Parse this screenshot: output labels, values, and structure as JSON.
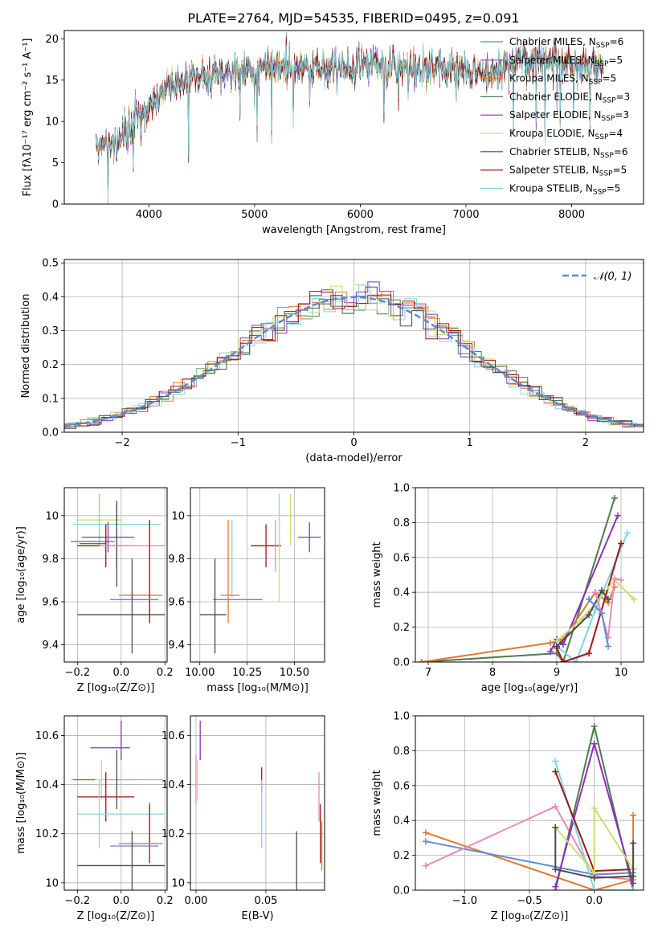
{
  "figure_title": "PLATE=2764, MJD=54535, FIBERID=0495, z=0.091",
  "colors": {
    "c0": "#6a9a6a",
    "c1": "#9a3fbf",
    "c2": "#e07a2f",
    "c3": "#4d7c4d",
    "c4": "#8e2fbf",
    "c5": "#c8e06a",
    "c6": "#4a4a4a",
    "c7": "#a01515",
    "c8": "#7fd6e0",
    "c9": "#e88ab8",
    "c10": "#5b8bd6",
    "normal": "#5b8bd6"
  },
  "chart_data": [
    {
      "id": "spectrum",
      "type": "line",
      "title": "PLATE=2764, MJD=54535, FIBERID=0495, z=0.091",
      "xlabel": "wavelength [Angstrom, rest frame]",
      "ylabel": "Flux [fλ10⁻¹⁷ erg cm⁻² s⁻¹ A⁻¹]",
      "xlim": [
        3200,
        8680
      ],
      "ylim": [
        0,
        21
      ],
      "xticks": [
        4000,
        5000,
        6000,
        7000,
        8000
      ],
      "yticks": [
        0,
        5,
        10,
        15,
        20
      ],
      "grid": false,
      "legend_position": "right",
      "x_range_data": [
        3500,
        8300
      ],
      "continuum": {
        "x": [
          3500,
          3600,
          3700,
          3800,
          3900,
          4000,
          4100,
          4200,
          4300,
          4400,
          4500,
          4700,
          5000,
          5500,
          6000,
          6500,
          7000,
          7300,
          7500,
          8000,
          8300
        ],
        "y": [
          6.5,
          7.2,
          7.5,
          8.5,
          10.5,
          12.0,
          13.5,
          14.2,
          14.5,
          15.0,
          15.3,
          15.8,
          16.3,
          16.5,
          16.8,
          16.6,
          16.2,
          15.8,
          17.8,
          17.0,
          16.6
        ]
      },
      "series": [
        {
          "name": "Chabrier MILES, N_SSP=6",
          "legend_label": "Chabrier MILES, N",
          "legend_sub": "SSP",
          "legend_value": "=6",
          "color": "#6a9a6a"
        },
        {
          "name": "Salpeter MILES, N_SSP=5",
          "legend_label": "Salpeter MILES, N",
          "legend_sub": "SSP",
          "legend_value": "=5",
          "color": "#9a3fbf"
        },
        {
          "name": "Kroupa MILES, N_SSP=5",
          "legend_label": "Kroupa MILES, N",
          "legend_sub": "SSP",
          "legend_value": "=5",
          "color": "#e07a2f"
        },
        {
          "name": "Chabrier ELODIE, N_SSP=3",
          "legend_label": "Chabrier ELODIE, N",
          "legend_sub": "SSP",
          "legend_value": "=3",
          "color": "#4d7c4d"
        },
        {
          "name": "Salpeter ELODIE, N_SSP=3",
          "legend_label": "Salpeter ELODIE, N",
          "legend_sub": "SSP",
          "legend_value": "=3",
          "color": "#8e2fbf"
        },
        {
          "name": "Kroupa ELODIE, N_SSP=4",
          "legend_label": "Kroupa ELODIE, N",
          "legend_sub": "SSP",
          "legend_value": "=4",
          "color": "#c8e06a"
        },
        {
          "name": "Chabrier STELIB, N_SSP=6",
          "legend_label": "Chabrier STELIB, N",
          "legend_sub": "SSP",
          "legend_value": "=6",
          "color": "#4a4a4a"
        },
        {
          "name": "Salpeter STELIB, N_SSP=5",
          "legend_label": "Salpeter STELIB, N",
          "legend_sub": "SSP",
          "legend_value": "=5",
          "color": "#a01515"
        },
        {
          "name": "Kroupa STELIB, N_SSP=5",
          "legend_label": "Kroupa STELIB, N",
          "legend_sub": "SSP",
          "legend_value": "=5",
          "color": "#7fd6e0"
        }
      ]
    },
    {
      "id": "residuals",
      "type": "histogram",
      "xlabel": "(data-model)/error",
      "ylabel": "Normed distribution",
      "xlim": [
        -2.5,
        2.5
      ],
      "ylim": [
        0,
        0.51
      ],
      "xticks": [
        -2,
        -1,
        0,
        1,
        2
      ],
      "yticks": [
        0.0,
        0.1,
        0.2,
        0.3,
        0.4,
        0.5
      ],
      "grid": true,
      "bin_width": 0.1,
      "legend": {
        "label": "𝒩(0, 1)",
        "position": "top-right"
      },
      "series_colors": [
        "#4d7c4d",
        "#8e2fbf",
        "#e07a2f",
        "#c8e06a",
        "#a01515",
        "#7fd6e0",
        "#4a4a4a"
      ]
    },
    {
      "id": "age_vs_Z",
      "type": "errorbar",
      "xlabel": "Z [log₁₀(Z/Z⊙)]",
      "ylabel": "age  [log₁₀(age/yr)]",
      "xlim": [
        -0.26,
        0.21
      ],
      "ylim": [
        9.32,
        10.13
      ],
      "xticks": [
        -0.2,
        0.0,
        0.2
      ],
      "yticks": [
        9.4,
        9.6,
        9.8,
        10.0
      ],
      "grid": true,
      "points": [
        {
          "x": -0.1,
          "y": 9.98,
          "xerr": 0.1,
          "yerr": 0.12,
          "color": "#c8e06a"
        },
        {
          "x": -0.1,
          "y": 9.98,
          "xerr": 0.0,
          "yerr": 0.12,
          "color": "#7fd6e0"
        },
        {
          "x": -0.02,
          "y": 9.96,
          "xerr": 0.2,
          "yerr": 0.0,
          "color": "#7fd6e0"
        },
        {
          "x": -0.13,
          "y": 9.88,
          "xerr": 0.1,
          "yerr": 0.0,
          "color": "#4d7c4d"
        },
        {
          "x": -0.06,
          "y": 9.9,
          "xerr": 0.12,
          "yerr": 0.07,
          "color": "#8e2fbf"
        },
        {
          "x": -0.02,
          "y": 9.9,
          "xerr": 0.0,
          "yerr": 0.15,
          "color": "#8e2fbf"
        },
        {
          "x": -0.13,
          "y": 9.87,
          "xerr": 0.06,
          "yerr": 0.0,
          "color": "#4d7c4d"
        },
        {
          "x": -0.02,
          "y": 9.87,
          "xerr": 0.0,
          "yerr": 0.2,
          "color": "#4a4a4a"
        },
        {
          "x": -0.07,
          "y": 9.86,
          "xerr": 0.13,
          "yerr": 0.1,
          "color": "#a01515"
        },
        {
          "x": 0.05,
          "y": 9.86,
          "xerr": 0.15,
          "yerr": 0.0,
          "color": "#e88ab8"
        },
        {
          "x": 0.13,
          "y": 9.74,
          "xerr": 0.0,
          "yerr": 0.24,
          "color": "#e88ab8"
        },
        {
          "x": 0.09,
          "y": 9.63,
          "xerr": 0.1,
          "yerr": 0.0,
          "color": "#e07a2f"
        },
        {
          "x": 0.13,
          "y": 9.74,
          "xerr": 0.0,
          "yerr": 0.24,
          "color": "#a01515"
        },
        {
          "x": 0.06,
          "y": 9.61,
          "xerr": 0.11,
          "yerr": 0.0,
          "color": "#5b8bd6"
        },
        {
          "x": 0.0,
          "y": 9.54,
          "xerr": 0.2,
          "yerr": 0.0,
          "color": "#4a4a4a"
        },
        {
          "x": 0.05,
          "y": 9.58,
          "xerr": 0.0,
          "yerr": 0.22,
          "color": "#4a4a4a"
        }
      ]
    },
    {
      "id": "age_vs_mass",
      "type": "errorbar",
      "xlabel": "mass [log₁₀(M/M⊙)]",
      "ylabel": "",
      "xlim": [
        9.95,
        10.66
      ],
      "ylim": [
        9.32,
        10.13
      ],
      "xticks": [
        10.0,
        10.25,
        10.5
      ],
      "yticks": [
        9.4,
        9.6,
        9.8,
        10.0
      ],
      "grid": true,
      "points": [
        {
          "x": 10.42,
          "y": 9.98,
          "xerr": 0.0,
          "yerr": 0.12,
          "color": "#7fd6e0"
        },
        {
          "x": 10.48,
          "y": 9.98,
          "xerr": 0.0,
          "yerr": 0.12,
          "color": "#c8e06a"
        },
        {
          "x": 10.58,
          "y": 9.9,
          "xerr": 0.06,
          "yerr": 0.07,
          "color": "#8e2fbf"
        },
        {
          "x": 10.17,
          "y": 9.8,
          "xerr": 0.0,
          "yerr": 0.18,
          "color": "#7fd6e0"
        },
        {
          "x": 10.35,
          "y": 9.86,
          "xerr": 0.08,
          "yerr": 0.1,
          "color": "#a01515"
        },
        {
          "x": 10.4,
          "y": 9.86,
          "xerr": 0.0,
          "yerr": 0.12,
          "color": "#e88ab8"
        },
        {
          "x": 10.42,
          "y": 9.8,
          "xerr": 0.0,
          "yerr": 0.2,
          "color": "#c8e06a"
        },
        {
          "x": 10.16,
          "y": 9.63,
          "xerr": 0.05,
          "yerr": 0.0,
          "color": "#e07a2f"
        },
        {
          "x": 10.15,
          "y": 9.74,
          "xerr": 0.0,
          "yerr": 0.24,
          "color": "#e07a2f"
        },
        {
          "x": 10.2,
          "y": 9.61,
          "xerr": 0.13,
          "yerr": 0.0,
          "color": "#5b8bd6"
        },
        {
          "x": 10.07,
          "y": 9.54,
          "xerr": 0.07,
          "yerr": 0.0,
          "color": "#4a4a4a"
        },
        {
          "x": 10.08,
          "y": 9.58,
          "xerr": 0.0,
          "yerr": 0.22,
          "color": "#4a4a4a"
        }
      ]
    },
    {
      "id": "massweight_vs_age",
      "type": "line",
      "xlabel": "age  [log₁₀(age/yr)]",
      "ylabel": "mass weight",
      "xlim": [
        6.8,
        10.35
      ],
      "ylim": [
        0,
        1.0
      ],
      "xticks": [
        7,
        8,
        9,
        10
      ],
      "yticks": [
        0.0,
        0.2,
        0.4,
        0.6,
        0.8,
        1.0
      ],
      "grid": true,
      "series": [
        {
          "color": "#4d7c4d",
          "x": [
            6.9,
            9.0,
            9.1,
            9.9
          ],
          "y": [
            0.0,
            0.05,
            0.0,
            0.94
          ]
        },
        {
          "color": "#e07a2f",
          "x": [
            6.9,
            8.9,
            9.1,
            9.6,
            9.8,
            9.9
          ],
          "y": [
            0.0,
            0.11,
            0.13,
            0.4,
            0.34,
            0.43
          ]
        },
        {
          "color": "#8e2fbf",
          "x": [
            8.9,
            9.0,
            9.1,
            9.95
          ],
          "y": [
            0.06,
            0.13,
            0.1,
            0.84
          ]
        },
        {
          "color": "#7fd6e0",
          "x": [
            9.0,
            9.3,
            9.6,
            10.1
          ],
          "y": [
            0.09,
            0.0,
            0.3,
            0.74
          ]
        },
        {
          "color": "#a01515",
          "x": [
            9.0,
            9.1,
            9.5,
            10.0
          ],
          "y": [
            0.08,
            0.0,
            0.05,
            0.68
          ]
        },
        {
          "color": "#c8e06a",
          "x": [
            9.0,
            9.4,
            9.9,
            10.2
          ],
          "y": [
            0.12,
            0.25,
            0.47,
            0.36
          ]
        },
        {
          "color": "#4a4a4a",
          "x": [
            9.0,
            9.5,
            9.7,
            9.8
          ],
          "y": [
            0.09,
            0.27,
            0.41,
            0.36
          ]
        },
        {
          "color": "#e88ab8",
          "x": [
            9.6,
            9.8,
            9.9,
            10.0
          ],
          "y": [
            0.4,
            0.14,
            0.48,
            0.47
          ]
        },
        {
          "color": "#5b8bd6",
          "x": [
            9.5,
            9.7,
            9.8
          ],
          "y": [
            0.36,
            0.28,
            0.09
          ]
        }
      ]
    },
    {
      "id": "mass_vs_Z",
      "type": "errorbar",
      "xlabel": "Z [log₁₀(Z/Z⊙)]",
      "ylabel": "mass [log₁₀(M/M⊙)]",
      "xlim": [
        -0.26,
        0.21
      ],
      "ylim": [
        9.97,
        10.68
      ],
      "xticks": [
        -0.2,
        0.0,
        0.2
      ],
      "yticks": [
        10.0,
        10.2,
        10.4,
        10.6
      ],
      "grid": true,
      "points": [
        {
          "x": -0.05,
          "y": 10.55,
          "xerr": 0.09,
          "yerr": 0.0,
          "color": "#8e2fbf"
        },
        {
          "x": 0.0,
          "y": 10.58,
          "xerr": 0.0,
          "yerr": 0.08,
          "color": "#8e2fbf"
        },
        {
          "x": -0.09,
          "y": 10.42,
          "xerr": 0.14,
          "yerr": 0.08,
          "color": "#c8e06a"
        },
        {
          "x": -0.17,
          "y": 10.42,
          "xerr": 0.05,
          "yerr": 0.0,
          "color": "#4d7c4d"
        },
        {
          "x": 0.06,
          "y": 10.42,
          "xerr": 0.13,
          "yerr": 0.0,
          "color": "#e88ab8"
        },
        {
          "x": -0.02,
          "y": 10.42,
          "xerr": 0.0,
          "yerr": 0.12,
          "color": "#4a4a4a"
        },
        {
          "x": 0.13,
          "y": 10.24,
          "xerr": 0.0,
          "yerr": 0.09,
          "color": "#e88ab8"
        },
        {
          "x": -0.07,
          "y": 10.35,
          "xerr": 0.13,
          "yerr": 0.1,
          "color": "#a01515"
        },
        {
          "x": 0.0,
          "y": 10.28,
          "xerr": 0.2,
          "yerr": 0.0,
          "color": "#7fd6e0"
        },
        {
          "x": -0.1,
          "y": 10.28,
          "xerr": 0.0,
          "yerr": 0.14,
          "color": "#7fd6e0"
        },
        {
          "x": 0.13,
          "y": 10.2,
          "xerr": 0.0,
          "yerr": 0.12,
          "color": "#a01515"
        },
        {
          "x": 0.09,
          "y": 10.16,
          "xerr": 0.1,
          "yerr": 0.0,
          "color": "#e07a2f"
        },
        {
          "x": 0.06,
          "y": 10.15,
          "xerr": 0.11,
          "yerr": 0.0,
          "color": "#5b8bd6"
        },
        {
          "x": 0.05,
          "y": 10.07,
          "xerr": 0.0,
          "yerr": 0.14,
          "color": "#4a4a4a"
        },
        {
          "x": 0.0,
          "y": 10.07,
          "xerr": 0.2,
          "yerr": 0.0,
          "color": "#4a4a4a"
        }
      ]
    },
    {
      "id": "mass_vs_ebv",
      "type": "errorbar",
      "xlabel": "E(B-V)",
      "ylabel": "",
      "xlim": [
        -0.004,
        0.092
      ],
      "ylim": [
        9.97,
        10.68
      ],
      "xticks": [
        0.0,
        0.05
      ],
      "yticks": [
        10.0,
        10.2,
        10.4,
        10.6
      ],
      "grid": true,
      "points": [
        {
          "x": 0.003,
          "y": 10.58,
          "xerr": 0.0,
          "yerr": 0.08,
          "color": "#8e2fbf"
        },
        {
          "x": 0.001,
          "y": 10.42,
          "xerr": 0.0,
          "yerr": 0.08,
          "color": "#c8e06a"
        },
        {
          "x": 0.0,
          "y": 10.42,
          "xerr": 0.0,
          "yerr": 0.1,
          "color": "#e88ab8"
        },
        {
          "x": 0.047,
          "y": 10.42,
          "xerr": 0.0,
          "yerr": 0.05,
          "color": "#a01515"
        },
        {
          "x": 0.047,
          "y": 10.28,
          "xerr": 0.0,
          "yerr": 0.14,
          "color": "#7fd6e0"
        },
        {
          "x": 0.072,
          "y": 10.07,
          "xerr": 0.0,
          "yerr": 0.14,
          "color": "#4a4a4a"
        },
        {
          "x": 0.088,
          "y": 10.35,
          "xerr": 0.0,
          "yerr": 0.1,
          "color": "#e88ab8"
        },
        {
          "x": 0.089,
          "y": 10.2,
          "xerr": 0.0,
          "yerr": 0.12,
          "color": "#a01515"
        },
        {
          "x": 0.09,
          "y": 10.15,
          "xerr": 0.0,
          "yerr": 0.1,
          "color": "#e07a2f"
        }
      ]
    },
    {
      "id": "massweight_vs_Z",
      "type": "line",
      "xlabel": "Z [log₁₀(Z/Z⊙)]",
      "ylabel": "mass weight",
      "xlim": [
        -1.38,
        0.38
      ],
      "ylim": [
        0,
        1.0
      ],
      "xticks": [
        -1.0,
        -0.5,
        0.0
      ],
      "yticks": [
        0.0,
        0.2,
        0.4,
        0.6,
        0.8,
        1.0
      ],
      "grid": true,
      "series": [
        {
          "color": "#e07a2f",
          "x": [
            -1.3,
            0.0,
            0.3,
            0.3
          ],
          "y": [
            0.33,
            0.0,
            0.06,
            0.43
          ]
        },
        {
          "color": "#5b8bd6",
          "x": [
            -1.3,
            0.0,
            0.3
          ],
          "y": [
            0.28,
            0.09,
            0.1
          ]
        },
        {
          "color": "#e88ab8",
          "x": [
            -1.3,
            -0.3,
            0.0,
            0.3
          ],
          "y": [
            0.14,
            0.48,
            0.08,
            0.06
          ]
        },
        {
          "color": "#4d7c4d",
          "x": [
            -0.3,
            0.0,
            0.3
          ],
          "y": [
            0.0,
            0.94,
            0.0
          ]
        },
        {
          "color": "#8e2fbf",
          "x": [
            -0.3,
            0.0,
            0.3
          ],
          "y": [
            0.02,
            0.84,
            0.04
          ]
        },
        {
          "color": "#7fd6e0",
          "x": [
            -0.3,
            0.0,
            0.3
          ],
          "y": [
            0.74,
            0.0,
            0.0
          ]
        },
        {
          "color": "#a01515",
          "x": [
            -0.3,
            0.0,
            0.3
          ],
          "y": [
            0.68,
            0.11,
            0.12
          ]
        },
        {
          "color": "#c8e06a",
          "x": [
            -0.3,
            0.0,
            0.0,
            0.3
          ],
          "y": [
            0.36,
            0.1,
            0.47,
            0.12
          ]
        },
        {
          "color": "#4a4a4a",
          "x": [
            -0.3,
            -0.3,
            0.0,
            0.3,
            0.3
          ],
          "y": [
            0.36,
            0.12,
            0.07,
            0.08,
            0.27
          ]
        }
      ]
    }
  ]
}
